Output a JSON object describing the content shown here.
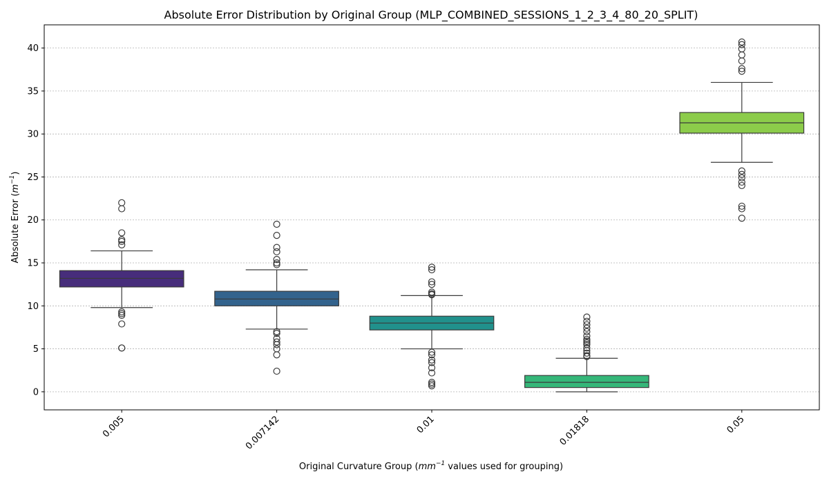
{
  "chart_data": {
    "type": "box",
    "title": "Absolute Error Distribution by Original Group (MLP_COMBINED_SESSIONS_1_2_3_4_80_20_SPLIT)",
    "xlabel_parts": [
      "Original Curvature Group (",
      "mm",
      "−1",
      " values used for grouping)"
    ],
    "ylabel_parts": [
      "Absolute Error (",
      "m",
      "−1",
      ")"
    ],
    "ylim": [
      -2.1,
      42.7
    ],
    "yticks": [
      0,
      5,
      10,
      15,
      20,
      25,
      30,
      35,
      40
    ],
    "grid": true,
    "categories": [
      "0.005",
      "0.007142",
      "0.01",
      "0.01818",
      "0.05"
    ],
    "colors": [
      "#472d7b",
      "#33638d",
      "#21918c",
      "#35b779",
      "#8ccc4a"
    ],
    "boxes": [
      {
        "category": "0.005",
        "q1": 12.2,
        "median": 13.2,
        "q3": 14.1,
        "whisker_low": 9.8,
        "whisker_high": 16.4,
        "outliers": [
          22.0,
          21.3,
          18.5,
          17.7,
          17.5,
          17.1,
          9.3,
          9.1,
          8.9,
          7.9,
          5.1,
          5.1
        ]
      },
      {
        "category": "0.007142",
        "q1": 10.0,
        "median": 10.8,
        "q3": 11.7,
        "whisker_low": 7.3,
        "whisker_high": 14.2,
        "outliers": [
          19.5,
          18.2,
          16.8,
          16.3,
          15.4,
          15.0,
          14.8,
          7.0,
          6.8,
          6.2,
          5.8,
          5.5,
          5.0,
          4.3,
          2.4
        ]
      },
      {
        "category": "0.01",
        "q1": 7.2,
        "median": 8.0,
        "q3": 8.8,
        "whisker_low": 5.0,
        "whisker_high": 11.2,
        "outliers": [
          14.5,
          14.2,
          12.8,
          12.5,
          11.6,
          11.4,
          11.3,
          4.6,
          4.3,
          3.7,
          3.4,
          2.8,
          2.2,
          1.1,
          0.9,
          0.7
        ]
      },
      {
        "category": "0.01818",
        "q1": 0.5,
        "median": 1.1,
        "q3": 1.9,
        "whisker_low": 0.0,
        "whisker_high": 3.9,
        "outliers": [
          8.7,
          8.2,
          7.8,
          7.4,
          7.0,
          6.5,
          6.1,
          5.9,
          5.7,
          5.5,
          5.1,
          4.8,
          4.5,
          4.2,
          4.1
        ]
      },
      {
        "category": "0.05",
        "q1": 30.1,
        "median": 31.3,
        "q3": 32.5,
        "whisker_low": 26.7,
        "whisker_high": 36.0,
        "outliers": [
          40.7,
          40.4,
          39.9,
          39.2,
          38.5,
          37.6,
          37.3,
          25.7,
          25.3,
          24.9,
          24.4,
          24.0,
          21.6,
          21.3,
          20.2
        ]
      }
    ]
  }
}
